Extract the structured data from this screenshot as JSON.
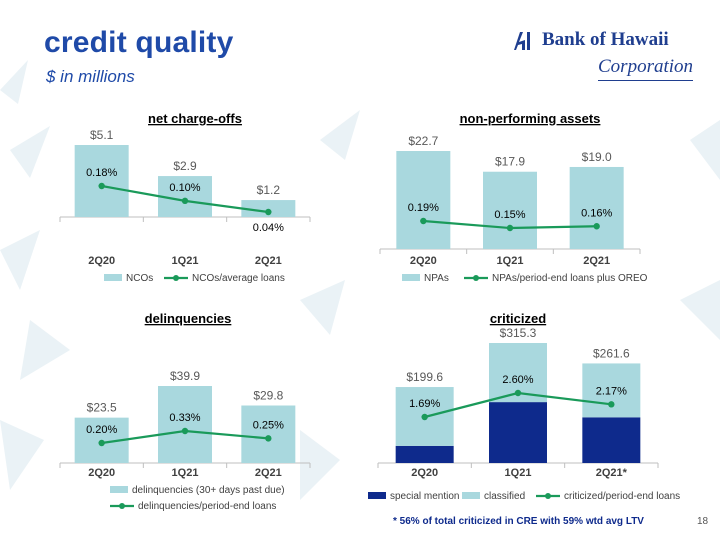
{
  "slide": {
    "title": "credit quality",
    "subtitle": "$ in millions",
    "footnote": "* 56% of total criticized in CRE with 59% wtd avg LTV",
    "page_number": "18"
  },
  "logo": {
    "name": "Bank of Hawaii",
    "sub": "Corporation"
  },
  "colors": {
    "title": "#1f4aa8",
    "bar": "#a9d8de",
    "line": "#1a9a5a",
    "special_mention": "#0e2a8c",
    "classified": "#a9d8de"
  },
  "chart_data": [
    {
      "type": "bar",
      "title": "net charge-offs",
      "categories": [
        "2Q20",
        "1Q21",
        "2Q21"
      ],
      "series": [
        {
          "name": "NCOs",
          "kind": "bar",
          "values": [
            5.1,
            2.9,
            1.2
          ],
          "labels": [
            "$5.1",
            "$2.9",
            "$1.2"
          ]
        },
        {
          "name": "NCOs/average loans",
          "kind": "line",
          "values": [
            0.18,
            0.1,
            0.04
          ],
          "labels": [
            "0.18%",
            "0.10%",
            "0.04%"
          ]
        }
      ],
      "legend": "bottom"
    },
    {
      "type": "bar",
      "title": "non-performing assets",
      "categories": [
        "2Q20",
        "1Q21",
        "2Q21"
      ],
      "series": [
        {
          "name": "NPAs",
          "kind": "bar",
          "values": [
            22.7,
            17.9,
            19.0
          ],
          "labels": [
            "$22.7",
            "$17.9",
            "$19.0"
          ]
        },
        {
          "name": "NPAs/period-end loans plus OREO",
          "kind": "line",
          "values": [
            0.19,
            0.15,
            0.16
          ],
          "labels": [
            "0.19%",
            "0.15%",
            "0.16%"
          ]
        }
      ],
      "legend": "bottom"
    },
    {
      "type": "bar",
      "title": "delinquencies",
      "categories": [
        "2Q20",
        "1Q21",
        "2Q21"
      ],
      "series": [
        {
          "name": "delinquencies (30+ days past due)",
          "kind": "bar",
          "values": [
            23.5,
            39.9,
            29.8
          ],
          "labels": [
            "$23.5",
            "$39.9",
            "$29.8"
          ]
        },
        {
          "name": "delinquencies/period-end loans",
          "kind": "line",
          "values": [
            0.2,
            0.33,
            0.25
          ],
          "labels": [
            "0.20%",
            "0.33%",
            "0.25%"
          ]
        }
      ],
      "legend": "bottom"
    },
    {
      "type": "bar",
      "title": "criticized",
      "categories": [
        "2Q20",
        "1Q21",
        "2Q21*"
      ],
      "totals": [
        "$199.6",
        "$315.3",
        "$261.6"
      ],
      "series": [
        {
          "name": "special mention",
          "kind": "stack",
          "values": [
            45,
            160,
            120
          ]
        },
        {
          "name": "classified",
          "kind": "stack",
          "values": [
            154.6,
            155.3,
            141.6
          ]
        },
        {
          "name": "criticized/period-end loans",
          "kind": "line",
          "values": [
            1.69,
            2.6,
            2.17
          ],
          "labels": [
            "1.69%",
            "2.60%",
            "2.17%"
          ]
        }
      ],
      "legend": "bottom"
    }
  ]
}
